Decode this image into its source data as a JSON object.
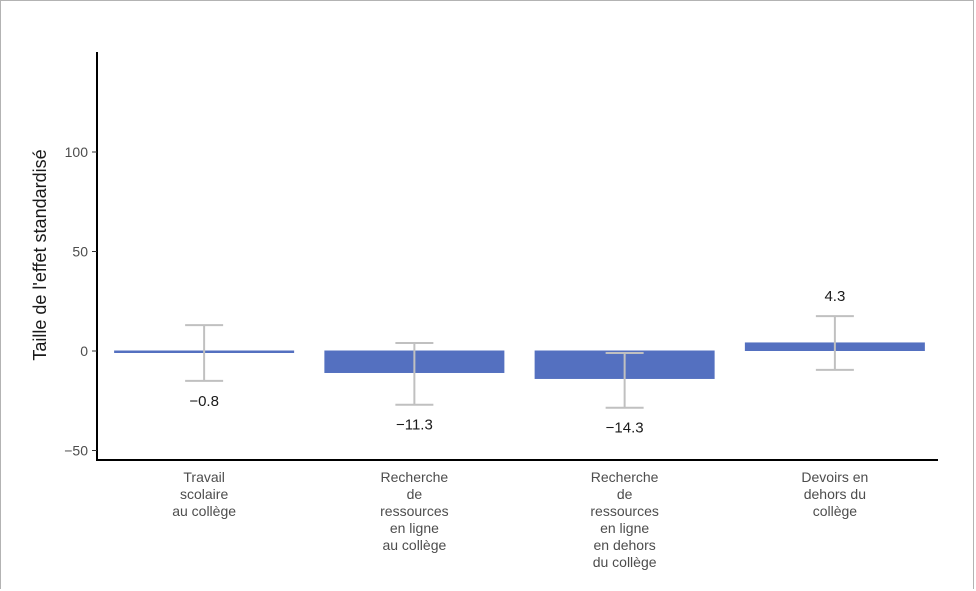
{
  "chart_data": {
    "type": "bar",
    "title": "",
    "xlabel": "",
    "ylabel": "Taille de l'effet standardisé",
    "ylim": [
      -55,
      150
    ],
    "yticks": [
      -50,
      0,
      50,
      100
    ],
    "ytick_labels": [
      "−50",
      "0",
      "50",
      "100"
    ],
    "grid": false,
    "bar_color": "#5470c0",
    "errorbar_color": "#c0c0c0",
    "categories": [
      [
        "Travail",
        "scolaire",
        "au collège"
      ],
      [
        "Recherche",
        "de",
        "ressources",
        "en ligne",
        "au collège"
      ],
      [
        "Recherche",
        "de",
        "ressources",
        "en ligne",
        "en dehors",
        "du collège"
      ],
      [
        "Devoirs en",
        "dehors du",
        "collège"
      ]
    ],
    "values": [
      -0.8,
      -11.3,
      -14.3,
      4.3
    ],
    "value_labels": [
      "−0.8",
      "−11.3",
      "−14.3",
      "4.3"
    ],
    "error_low": [
      -15,
      -27,
      -28.5,
      -9.5
    ],
    "error_high": [
      13,
      4,
      -1,
      17.5
    ]
  }
}
